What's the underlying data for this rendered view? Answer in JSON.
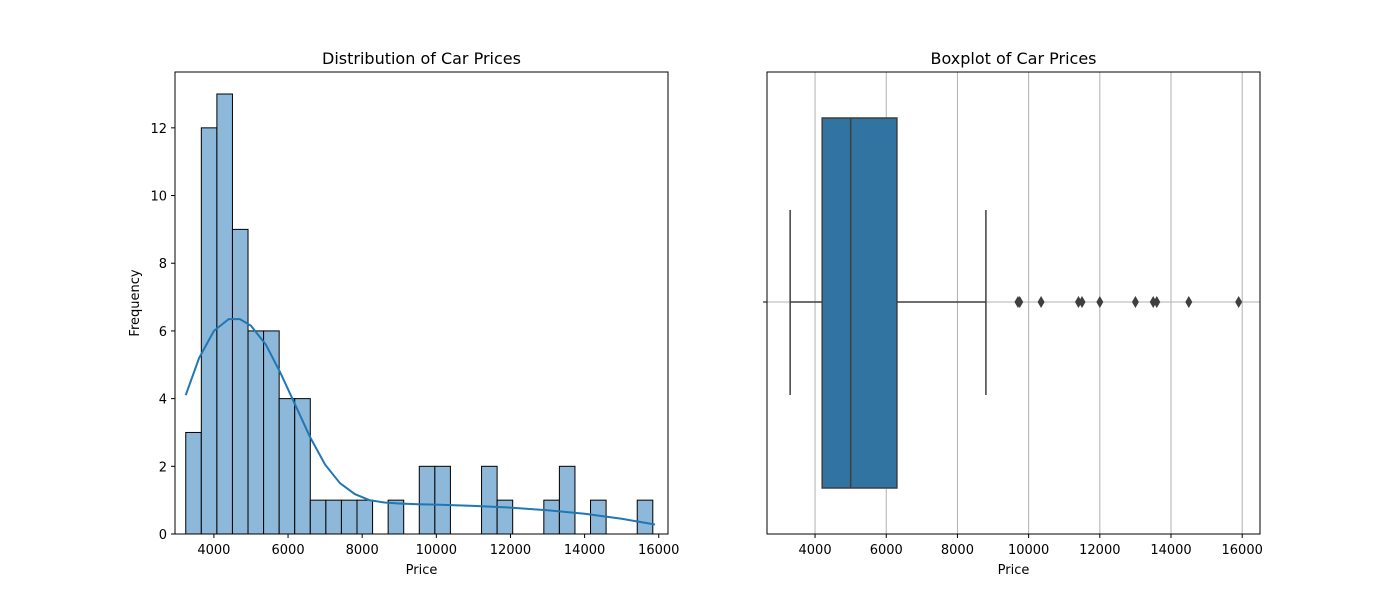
{
  "chart_data": [
    {
      "type": "bar",
      "title": "Distribution of Car Prices",
      "xlabel": "Price",
      "ylabel": "Frequency",
      "xlim": [
        2950,
        16250
      ],
      "ylim": [
        0,
        13.65
      ],
      "xticks": [
        "4000",
        "6000",
        "8000",
        "10000",
        "12000",
        "14000",
        "16000"
      ],
      "yticks": [
        "0",
        "2",
        "4",
        "6",
        "8",
        "10",
        "12"
      ],
      "bars": {
        "bin_start": 3240,
        "bin_width": 420,
        "counts": [
          3,
          12,
          13,
          9,
          6,
          6,
          4,
          4,
          1,
          1,
          1,
          1,
          0,
          1,
          0,
          2,
          2,
          0,
          0,
          2,
          1,
          0,
          0,
          1,
          2,
          0,
          1,
          0,
          0,
          1
        ]
      },
      "kde": {
        "name": "",
        "x": [
          3240,
          3600,
          4000,
          4400,
          4700,
          5000,
          5400,
          5800,
          6200,
          6600,
          7000,
          7400,
          7800,
          8200,
          8600,
          9000,
          9500,
          10000,
          11000,
          12000,
          13000,
          14000,
          15000,
          15900
        ],
        "y": [
          4.1,
          5.2,
          6.0,
          6.35,
          6.35,
          6.15,
          5.6,
          4.75,
          3.8,
          2.85,
          2.05,
          1.5,
          1.18,
          1.0,
          0.93,
          0.9,
          0.88,
          0.87,
          0.83,
          0.78,
          0.7,
          0.6,
          0.45,
          0.28
        ]
      },
      "bar_color": "#8db8d9",
      "line_color": "#1f77b4",
      "grid": false
    },
    {
      "type": "boxplot",
      "title": "Boxplot of Car Prices",
      "xlabel": "Price",
      "xlim": [
        2650,
        16500
      ],
      "xticks": [
        "4000",
        "6000",
        "8000",
        "10000",
        "12000",
        "14000",
        "16000"
      ],
      "whisker_low": 3300,
      "q1": 4200,
      "median": 5000,
      "q3": 6300,
      "whisker_high": 8800,
      "outliers": [
        9700,
        9750,
        10350,
        11400,
        11500,
        12000,
        13000,
        13500,
        13600,
        14500,
        15900
      ],
      "box_color": "#3274a1",
      "grid": true
    }
  ]
}
